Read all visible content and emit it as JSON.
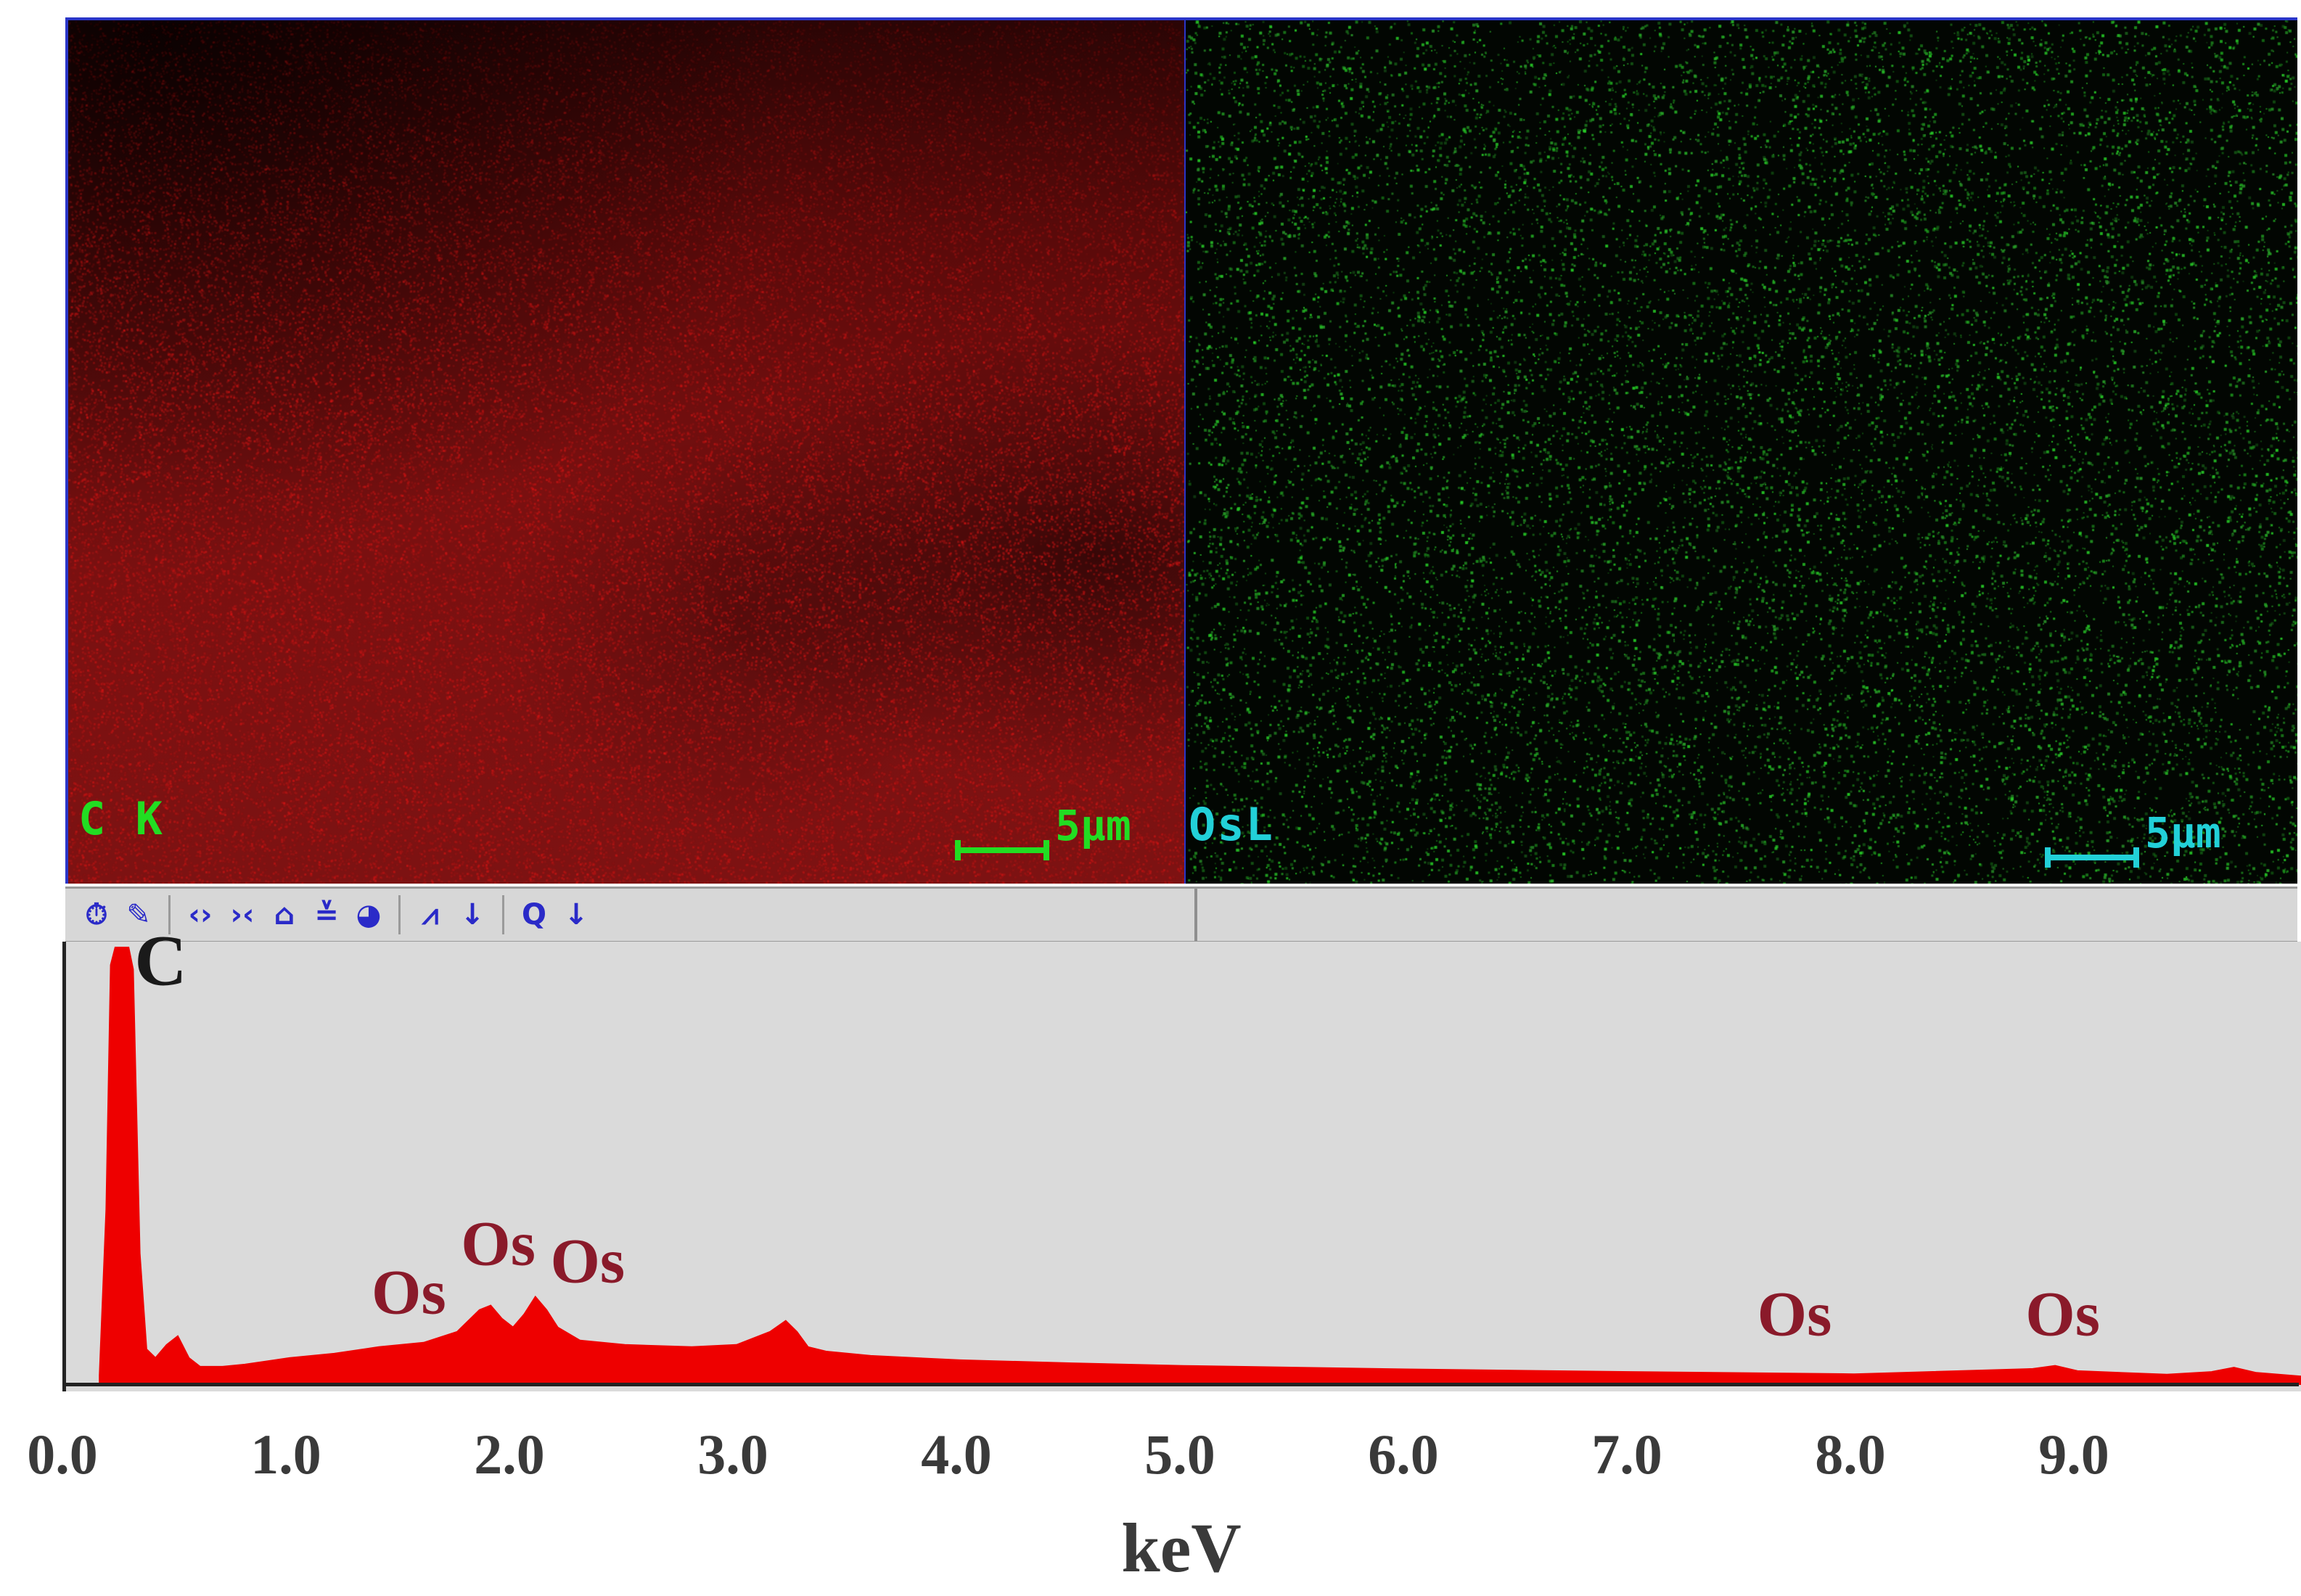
{
  "maps": {
    "carbon": {
      "label": "C K",
      "label_color": "#22dd22",
      "scale_text": "5µm",
      "scale_color": "#22dd22",
      "base_color": "#7a1010"
    },
    "osmium": {
      "label": "OsL",
      "label_color": "#22d0d8",
      "scale_text": "5µm",
      "scale_color": "#22d0d8",
      "base_color": "#1a8a1a"
    }
  },
  "toolbar": {
    "buttons": [
      {
        "name": "timer-icon",
        "glyph": "⏱"
      },
      {
        "name": "marker-tool-icon",
        "glyph": "✎"
      },
      {
        "name": "expand-horizontal-icon",
        "glyph": "‹›"
      },
      {
        "name": "compress-horizontal-icon",
        "glyph": "›‹"
      },
      {
        "name": "expand-vertical-icon",
        "glyph": "⌂"
      },
      {
        "name": "compress-vertical-icon",
        "glyph": "≚"
      },
      {
        "name": "reset-view-icon",
        "glyph": "◕"
      },
      {
        "name": "peak-id-icon",
        "glyph": "⩘"
      },
      {
        "name": "peak-id-dropdown-icon",
        "glyph": "↓"
      },
      {
        "name": "quantify-icon",
        "glyph": "Q"
      },
      {
        "name": "quantify-dropdown-icon",
        "glyph": "↓"
      }
    ]
  },
  "chart_data": {
    "type": "area",
    "title": "",
    "xlabel": "keV",
    "ylabel": "",
    "xlim": [
      0.0,
      10.0
    ],
    "x_ticks": [
      "0.0",
      "1.0",
      "2.0",
      "3.0",
      "4.0",
      "5.0",
      "6.0",
      "7.0",
      "8.0",
      "9.0"
    ],
    "fill_color": "#ee0000",
    "background": "#dadada",
    "series": [
      {
        "x": [
          0.15,
          0.18,
          0.2,
          0.22,
          0.25,
          0.28,
          0.3,
          0.33,
          0.36,
          0.4,
          0.45,
          0.5,
          0.55,
          0.6,
          0.7,
          0.8,
          1.0,
          1.2,
          1.4,
          1.6,
          1.75,
          1.85,
          1.9,
          1.95,
          2.0,
          2.05,
          2.1,
          2.15,
          2.2,
          2.3,
          2.5,
          2.8,
          3.0,
          3.15,
          3.22,
          3.27,
          3.32,
          3.4,
          3.6,
          4.0,
          4.5,
          5.0,
          6.0,
          7.0,
          8.0,
          8.8,
          8.9,
          9.0,
          9.4,
          9.6,
          9.7,
          9.8,
          10.0
        ],
        "y": [
          2,
          40,
          96,
          100,
          100,
          100,
          95,
          30,
          8,
          6,
          9,
          11,
          6,
          4,
          4,
          4.5,
          6,
          7,
          8.5,
          9.5,
          12,
          17,
          18,
          15,
          13,
          16,
          20,
          17,
          13,
          10,
          9,
          8.5,
          9,
          12,
          14.5,
          12,
          8.5,
          7.5,
          6.5,
          5.5,
          4.8,
          4.2,
          3.4,
          2.8,
          2.3,
          3.5,
          4.2,
          3.0,
          2.2,
          2.8,
          3.8,
          2.6,
          1.8
        ]
      }
    ],
    "annotations": [
      {
        "text": "C",
        "x": 0.44,
        "y": 97
      },
      {
        "text": "Os",
        "x": 1.55,
        "y": 21
      },
      {
        "text": "Os",
        "x": 1.95,
        "y": 32
      },
      {
        "text": "Os",
        "x": 2.35,
        "y": 28
      },
      {
        "text": "Os",
        "x": 7.75,
        "y": 16
      },
      {
        "text": "Os",
        "x": 8.95,
        "y": 16
      }
    ]
  }
}
